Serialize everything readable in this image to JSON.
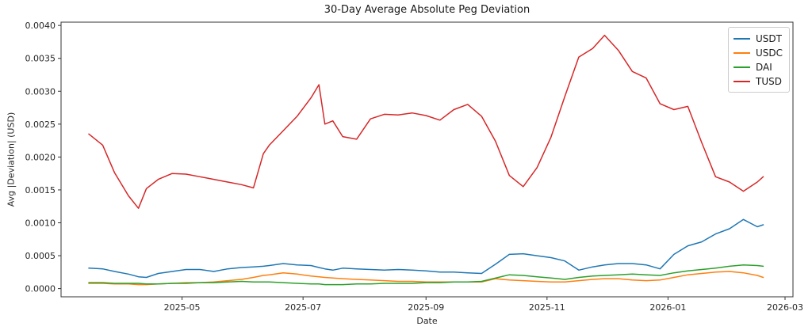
{
  "title": "30-Day Average Absolute Peg Deviation",
  "axes": {
    "xlabel": "Date",
    "ylabel": "Avg |Deviation| (USD)"
  },
  "legend": {
    "position": "upper right",
    "entries": [
      {
        "label": "USDT",
        "color": "#1f77b4"
      },
      {
        "label": "USDC",
        "color": "#ff7f0e"
      },
      {
        "label": "DAI",
        "color": "#2ca02c"
      },
      {
        "label": "TUSD",
        "color": "#d62728"
      }
    ]
  },
  "chart_data": {
    "type": "line",
    "title": "30-Day Average Absolute Peg Deviation",
    "xlabel": "Date",
    "ylabel": "Avg |Deviation| (USD)",
    "grid": false,
    "legend_position": "upper right",
    "xlim": [
      "2025-03-01",
      "2026-03-05"
    ],
    "ylim": [
      -0.000125,
      0.00405
    ],
    "x_ticks": [
      {
        "label": "2025-05",
        "date": "2025-05-01"
      },
      {
        "label": "2025-07",
        "date": "2025-07-01"
      },
      {
        "label": "2025-09",
        "date": "2025-09-01"
      },
      {
        "label": "2025-11",
        "date": "2025-11-01"
      },
      {
        "label": "2026-01",
        "date": "2026-01-01"
      },
      {
        "label": "2026-03",
        "date": "2026-03-01"
      }
    ],
    "y_ticks": [
      {
        "label": "0.0000",
        "value": 0.0
      },
      {
        "label": "0.0005",
        "value": 0.0005
      },
      {
        "label": "0.0010",
        "value": 0.001
      },
      {
        "label": "0.0015",
        "value": 0.0015
      },
      {
        "label": "0.0020",
        "value": 0.002
      },
      {
        "label": "0.0025",
        "value": 0.0025
      },
      {
        "label": "0.0030",
        "value": 0.003
      },
      {
        "label": "0.0035",
        "value": 0.0035
      },
      {
        "label": "0.0040",
        "value": 0.004
      }
    ],
    "x": [
      "2025-03-15",
      "2025-03-22",
      "2025-03-28",
      "2025-04-04",
      "2025-04-09",
      "2025-04-13",
      "2025-04-19",
      "2025-04-26",
      "2025-05-03",
      "2025-05-10",
      "2025-05-17",
      "2025-05-24",
      "2025-05-31",
      "2025-06-06",
      "2025-06-11",
      "2025-06-14",
      "2025-06-21",
      "2025-06-28",
      "2025-07-05",
      "2025-07-09",
      "2025-07-12",
      "2025-07-16",
      "2025-07-21",
      "2025-07-28",
      "2025-08-04",
      "2025-08-11",
      "2025-08-18",
      "2025-08-25",
      "2025-09-01",
      "2025-09-08",
      "2025-09-15",
      "2025-09-22",
      "2025-09-29",
      "2025-10-06",
      "2025-10-13",
      "2025-10-20",
      "2025-10-27",
      "2025-11-03",
      "2025-11-10",
      "2025-11-17",
      "2025-11-24",
      "2025-11-30",
      "2025-12-07",
      "2025-12-14",
      "2025-12-21",
      "2025-12-28",
      "2026-01-04",
      "2026-01-11",
      "2026-01-18",
      "2026-01-25",
      "2026-02-01",
      "2026-02-08",
      "2026-02-15",
      "2026-02-18"
    ],
    "series": [
      {
        "name": "USDT",
        "color": "#1f77b4",
        "values": [
          0.00031,
          0.0003,
          0.00026,
          0.00022,
          0.00018,
          0.00017,
          0.00023,
          0.00026,
          0.00029,
          0.00029,
          0.00026,
          0.0003,
          0.00032,
          0.00033,
          0.00034,
          0.00035,
          0.00038,
          0.00036,
          0.00035,
          0.00032,
          0.0003,
          0.00028,
          0.00031,
          0.0003,
          0.00029,
          0.00028,
          0.00029,
          0.00028,
          0.00027,
          0.00025,
          0.00025,
          0.00024,
          0.00023,
          0.00037,
          0.00052,
          0.00053,
          0.0005,
          0.00047,
          0.00042,
          0.00028,
          0.00033,
          0.00036,
          0.00038,
          0.00038,
          0.00036,
          0.0003,
          0.00052,
          0.00065,
          0.00071,
          0.00083,
          0.00091,
          0.00105,
          0.00094,
          0.00097
        ]
      },
      {
        "name": "USDC",
        "color": "#ff7f0e",
        "values": [
          8e-05,
          8e-05,
          7e-05,
          7e-05,
          6e-05,
          6e-05,
          7e-05,
          8e-05,
          9e-05,
          9e-05,
          0.0001,
          0.00012,
          0.00014,
          0.00017,
          0.0002,
          0.00021,
          0.00024,
          0.00022,
          0.00019,
          0.00018,
          0.00017,
          0.00016,
          0.00015,
          0.00014,
          0.00013,
          0.00012,
          0.00011,
          0.00011,
          0.0001,
          0.0001,
          0.0001,
          0.0001,
          0.0001,
          0.00015,
          0.00013,
          0.00012,
          0.00011,
          0.0001,
          0.0001,
          0.00012,
          0.00014,
          0.00015,
          0.00015,
          0.00013,
          0.00012,
          0.00013,
          0.00017,
          0.00021,
          0.00023,
          0.00025,
          0.00026,
          0.00024,
          0.0002,
          0.00017
        ]
      },
      {
        "name": "DAI",
        "color": "#2ca02c",
        "values": [
          9e-05,
          9e-05,
          8e-05,
          8e-05,
          8e-05,
          7e-05,
          7e-05,
          8e-05,
          8e-05,
          9e-05,
          9e-05,
          0.0001,
          0.00011,
          0.0001,
          0.0001,
          0.0001,
          9e-05,
          8e-05,
          7e-05,
          7e-05,
          6e-05,
          6e-05,
          6e-05,
          7e-05,
          7e-05,
          8e-05,
          8e-05,
          8e-05,
          9e-05,
          9e-05,
          0.0001,
          0.0001,
          0.00011,
          0.00016,
          0.00021,
          0.0002,
          0.00018,
          0.00016,
          0.00014,
          0.00017,
          0.00019,
          0.0002,
          0.00021,
          0.00022,
          0.00021,
          0.0002,
          0.00024,
          0.00027,
          0.00029,
          0.00031,
          0.00034,
          0.00036,
          0.00035,
          0.00034
        ]
      },
      {
        "name": "TUSD",
        "color": "#d62728",
        "values": [
          0.00235,
          0.00218,
          0.00176,
          0.00141,
          0.00122,
          0.00152,
          0.00166,
          0.00175,
          0.00174,
          0.0017,
          0.00166,
          0.00162,
          0.00158,
          0.00153,
          0.00205,
          0.00218,
          0.0024,
          0.00262,
          0.0029,
          0.0031,
          0.0025,
          0.00255,
          0.00231,
          0.00227,
          0.00258,
          0.00265,
          0.00264,
          0.00267,
          0.00263,
          0.00256,
          0.00272,
          0.0028,
          0.00262,
          0.00224,
          0.00172,
          0.00155,
          0.00184,
          0.0023,
          0.00292,
          0.00352,
          0.00365,
          0.00385,
          0.00362,
          0.0033,
          0.0032,
          0.00281,
          0.00272,
          0.00277,
          0.00222,
          0.0017,
          0.00162,
          0.00148,
          0.00162,
          0.0017
        ]
      }
    ]
  }
}
